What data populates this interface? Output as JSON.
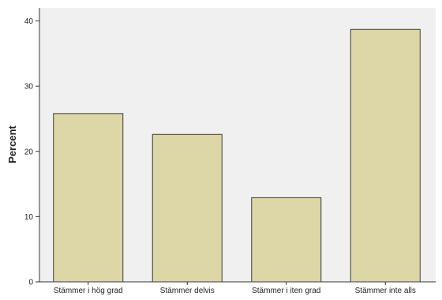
{
  "chart_data": {
    "type": "bar",
    "title": "",
    "xlabel": "",
    "ylabel": "Percent",
    "categories": [
      "Stämmer i hög grad",
      "Stämmer delvis",
      "Stämmer i iten grad",
      "Stämmer inte alls"
    ],
    "values": [
      25.8,
      22.6,
      12.9,
      38.7
    ],
    "ylim": [
      0,
      42
    ],
    "yticks": [
      0,
      10,
      20,
      30,
      40
    ],
    "grid": false,
    "colors": {
      "plot_background": "#f0f0f0",
      "bar_fill": "#ddd6a6",
      "bar_stroke": "#3a3a3a",
      "axis": "#333333"
    }
  }
}
